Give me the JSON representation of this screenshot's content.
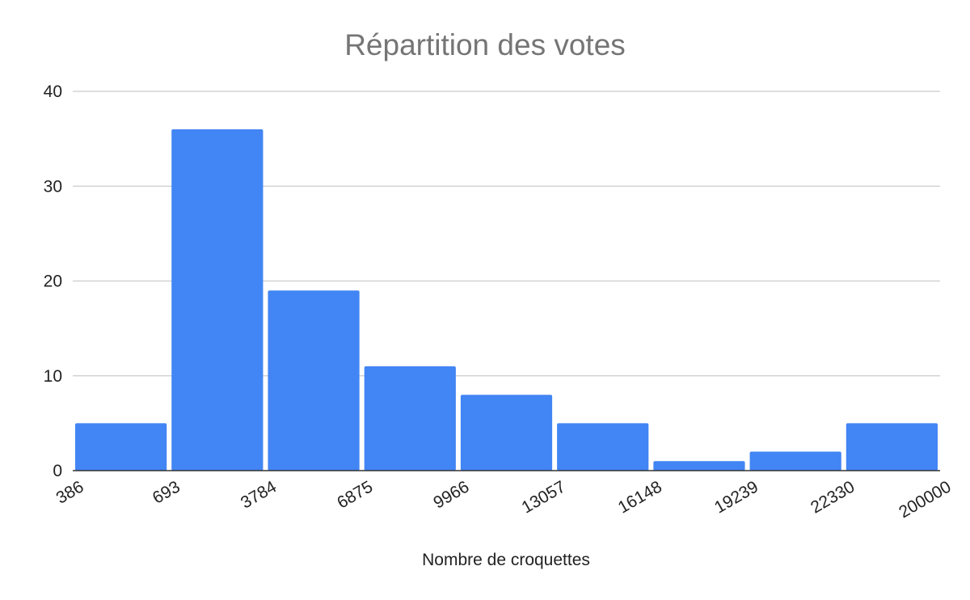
{
  "chart_data": {
    "type": "bar",
    "title": "Répartition des votes",
    "xlabel": "Nombre de croquettes",
    "ylabel": "",
    "ylim": [
      0,
      40
    ],
    "yticks": [
      0,
      10,
      20,
      30,
      40
    ],
    "bin_edges": [
      "386",
      "693",
      "3784",
      "6875",
      "9966",
      "13057",
      "16148",
      "19239",
      "22330",
      "200000"
    ],
    "values": [
      5,
      36,
      19,
      11,
      8,
      5,
      1,
      2,
      5
    ],
    "grid": true,
    "legend": "none",
    "bar_color": "#4285f4"
  }
}
